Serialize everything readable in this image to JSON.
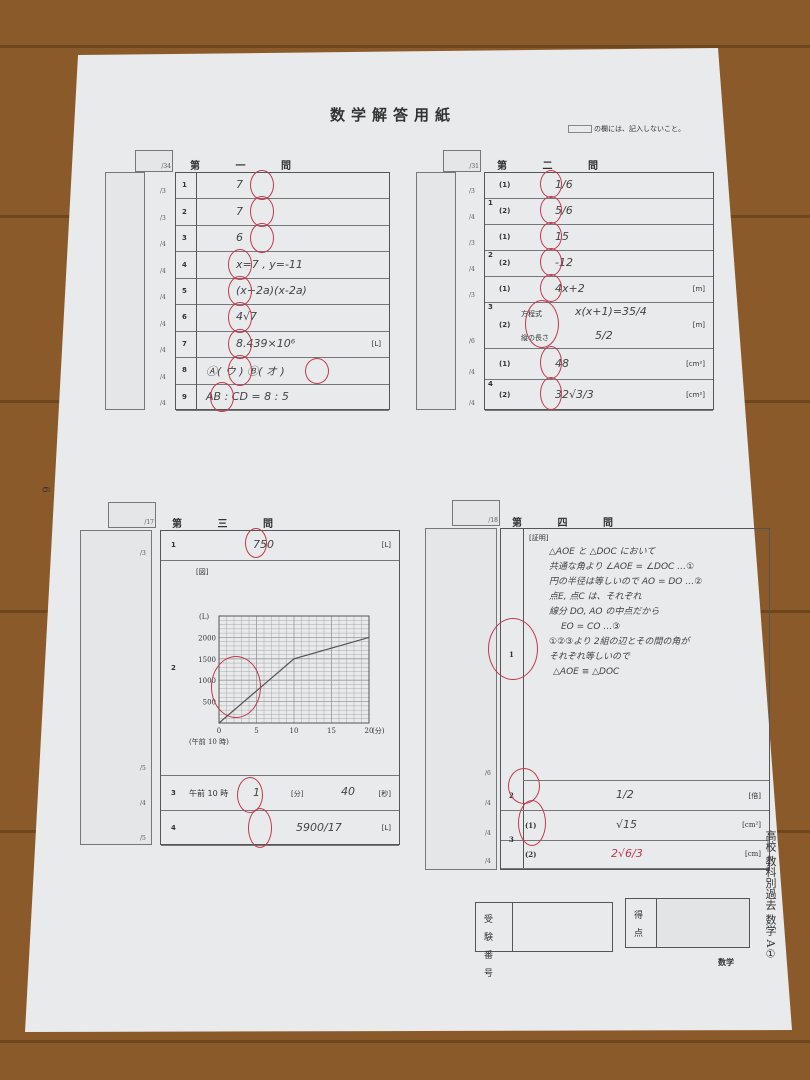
{
  "header": {
    "title": "数学解答用紙",
    "note": "の欄には、記入しないこと。"
  },
  "q1": {
    "heading": "第 一 問",
    "total": "/34",
    "rows": [
      {
        "n": "1",
        "pts": "/3",
        "answer": "7"
      },
      {
        "n": "2",
        "pts": "/3",
        "answer": "7"
      },
      {
        "n": "3",
        "pts": "/4",
        "answer": "6"
      },
      {
        "n": "4",
        "pts": "/4",
        "answer": "x=7 , y=-11"
      },
      {
        "n": "5",
        "pts": "/4",
        "answer": "(x+2a)(x-2a)"
      },
      {
        "n": "6",
        "pts": "/4",
        "answer": "4√7"
      },
      {
        "n": "7",
        "pts": "/4",
        "answer": "8.439×10⁶",
        "unit": "[L]"
      },
      {
        "n": "8",
        "pts": "/4",
        "answer": "Ⓐ( ウ )  Ⓑ( オ )"
      },
      {
        "n": "9",
        "pts": "/4",
        "answer": "AB : CD =   8  :  5"
      }
    ]
  },
  "q2": {
    "heading": "第 二 問",
    "total": "/31",
    "rows": [
      {
        "g": "1",
        "n": "(1)",
        "pts": "/3",
        "answer": "1/6"
      },
      {
        "g": "",
        "n": "(2)",
        "pts": "/4",
        "answer": "5/6"
      },
      {
        "g": "2",
        "n": "(1)",
        "pts": "/3",
        "answer": "15"
      },
      {
        "g": "",
        "n": "(2)",
        "pts": "/4",
        "answer": "-12"
      },
      {
        "g": "3",
        "n": "(1)",
        "pts": "/3",
        "answer": "4x+2",
        "unit": "[m]"
      },
      {
        "g": "",
        "n": "(2)",
        "pts": "/6",
        "eq_label": "方程式",
        "answer": "x(x+1)=35/4",
        "len_label": "縦の長さ",
        "answer2": "5/2",
        "unit": "[m]"
      },
      {
        "g": "4",
        "n": "(1)",
        "pts": "/4",
        "answer": "48",
        "unit": "[cm²]"
      },
      {
        "g": "",
        "n": "(2)",
        "pts": "/4",
        "answer": "32√3/3",
        "unit": "[cm²]"
      }
    ]
  },
  "q3": {
    "heading": "第 三 問",
    "total": "/17",
    "rows": [
      {
        "n": "1",
        "pts": "/3",
        "answer": "750",
        "unit": "[L]"
      },
      {
        "n": "2",
        "pts": "/5",
        "fig": "[図]"
      },
      {
        "n": "3",
        "pts": "/4",
        "prefix": "午前 10 時",
        "answer": "1",
        "unit_min": "[分]",
        "answer2": "40",
        "unit": "[秒]"
      },
      {
        "n": "4",
        "pts": "/5",
        "answer": "5900/17",
        "unit": "[L]"
      }
    ]
  },
  "chart_data": {
    "type": "line",
    "ylabel": "(L)",
    "xlabel": "(分)",
    "x_origin_label": "(午前 10 時)",
    "x_ticks": [
      "0",
      "5",
      "10",
      "15",
      "20"
    ],
    "y_ticks": [
      "500",
      "1000",
      "1500",
      "2000"
    ],
    "xlim": [
      0,
      20
    ],
    "ylim": [
      0,
      2500
    ],
    "grid": true,
    "x": [
      0,
      10,
      20
    ],
    "y": [
      0,
      1500,
      2000
    ]
  },
  "q4": {
    "heading": "第 四 問",
    "total": "/18",
    "proof_label": "[証明]",
    "proof": [
      "△AOE と △DOC において",
      "共通な角より ∠AOE = ∠DOC …①",
      "円の半径は等しいので AO = DO …②",
      "点E, 点C は、それぞれ",
      "線分 DO, AO の中点だから",
      "EO = CO …③",
      "①②③より 2組の辺とその間の角が",
      "それぞれ等しいので",
      "△AOE ≡ △DOC"
    ],
    "rows": [
      {
        "n": "1",
        "pts": "/6"
      },
      {
        "n": "2",
        "pts": "/4",
        "answer": "1/2",
        "unit": "[倍]"
      },
      {
        "g": "3",
        "n": "(1)",
        "pts": "/4",
        "answer": "√15",
        "unit": "[cm²]"
      },
      {
        "g": "",
        "n": "(2)",
        "pts": "/4",
        "answer": "2√6/3",
        "unit": "[cm]"
      }
    ]
  },
  "footer": {
    "exam_no_label": "受験番号",
    "score_label": "得点",
    "subject": "数学",
    "side": "高校 教科別過去 数学 A①",
    "page": "6"
  },
  "colors": {
    "paper": "#e9eaec",
    "wood": "#8b5a2b",
    "red_pen": "#c0394f"
  }
}
